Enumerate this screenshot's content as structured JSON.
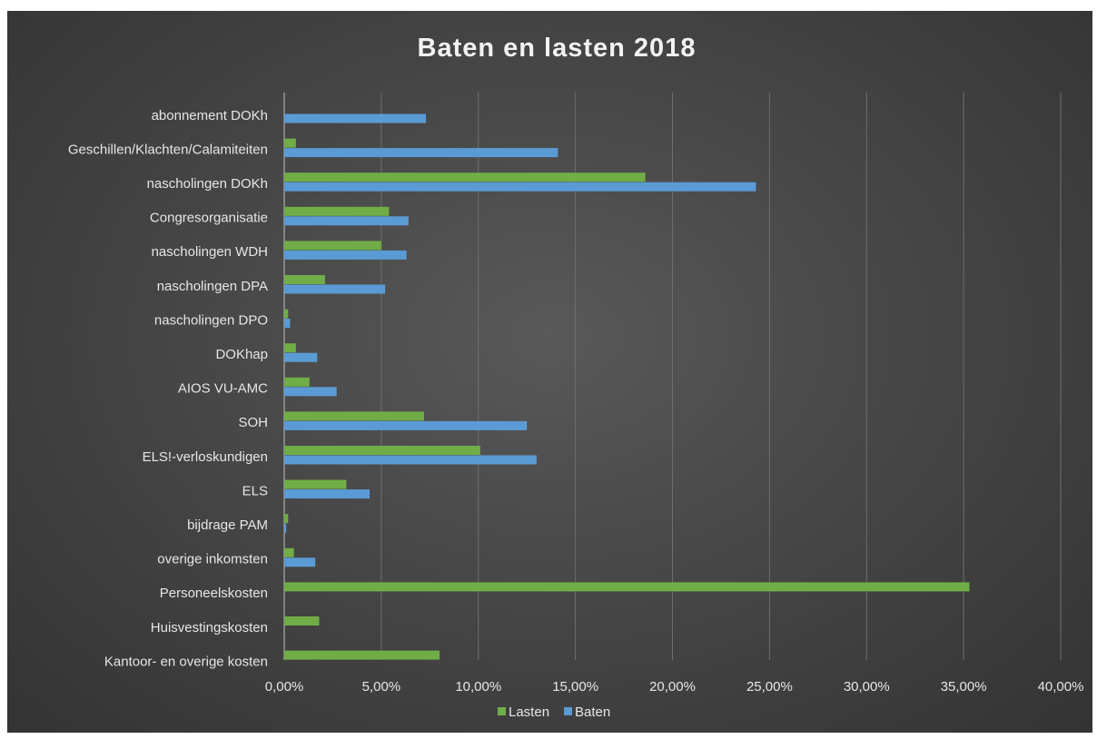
{
  "chart_data": {
    "type": "bar",
    "orientation": "horizontal",
    "title": "Baten en lasten 2018",
    "categories": [
      "abonnement DOKh",
      "Geschillen/Klachten/Calamiteiten",
      "nascholingen DOKh",
      "Congresorganisatie",
      "nascholingen WDH",
      "nascholingen DPA",
      "nascholingen DPO",
      "DOKhap",
      "AIOS VU-AMC",
      "SOH",
      "ELS!-verloskundigen",
      "ELS",
      "bijdrage PAM",
      "overige inkomsten",
      "Personeelskosten",
      "Huisvestingskosten",
      "Kantoor- en overige kosten"
    ],
    "series": [
      {
        "name": "Lasten",
        "color": "#70ad47",
        "values": [
          0,
          0.6,
          18.6,
          5.4,
          5.0,
          2.1,
          0.2,
          0.6,
          1.3,
          7.2,
          10.1,
          3.2,
          0.2,
          0.5,
          35.3,
          1.8,
          8.0
        ]
      },
      {
        "name": "Baten",
        "color": "#5b9bd5",
        "values": [
          7.3,
          14.1,
          24.3,
          6.4,
          6.3,
          5.2,
          0.3,
          1.7,
          2.7,
          12.5,
          13.0,
          4.4,
          0.1,
          1.6,
          null,
          null,
          null
        ]
      }
    ],
    "x_ticks": [
      "0,00%",
      "5,00%",
      "10,00%",
      "15,00%",
      "20,00%",
      "25,00%",
      "30,00%",
      "35,00%",
      "40,00%"
    ],
    "xlim": [
      0,
      40
    ],
    "grid": true,
    "legend_position": "bottom"
  }
}
